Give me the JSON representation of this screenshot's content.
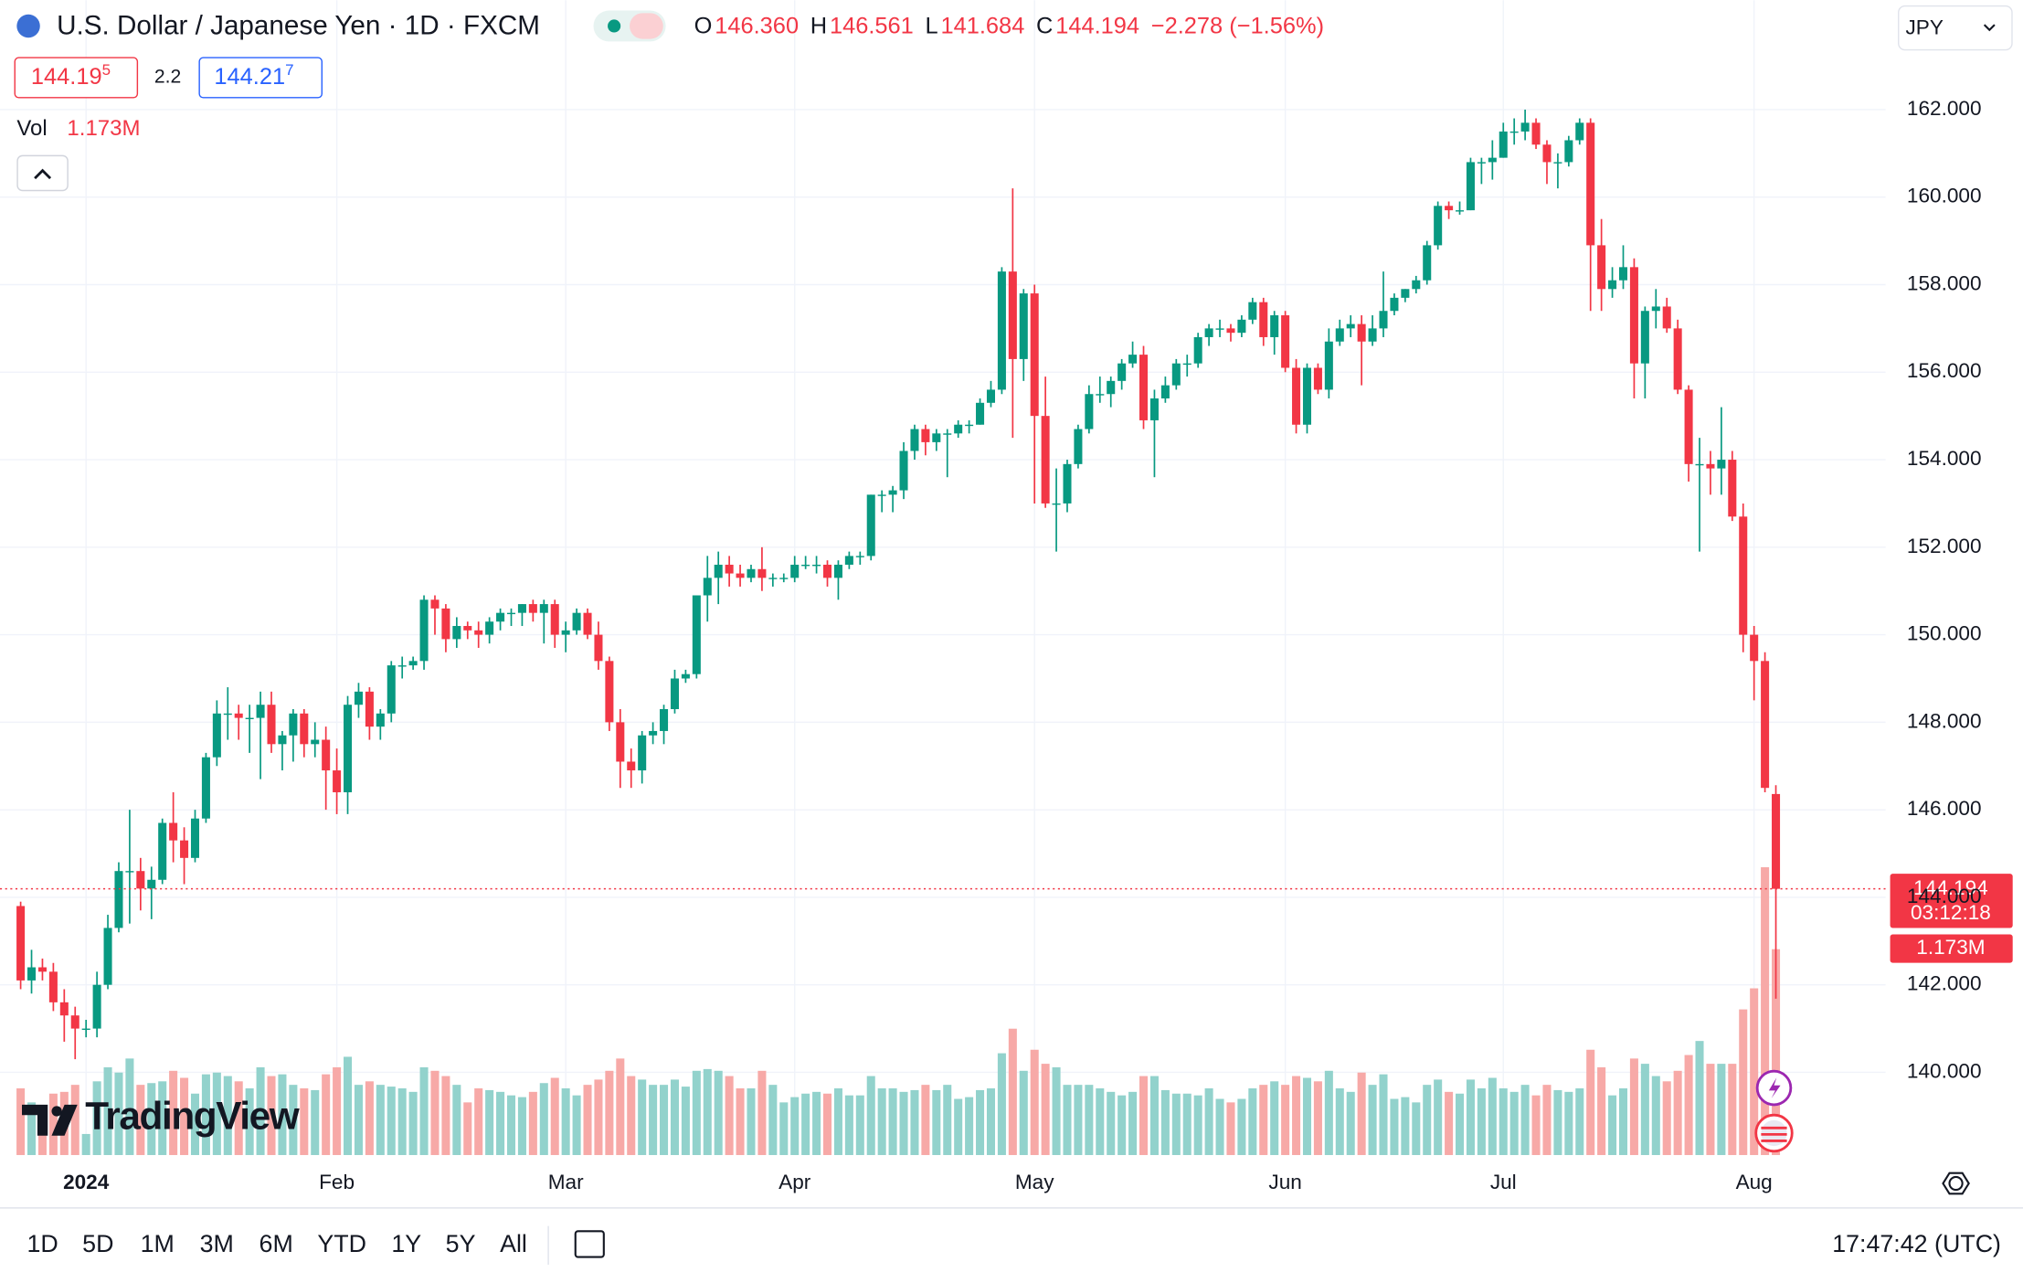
{
  "header": {
    "symbol": "U.S. Dollar / Japanese Yen · 1D · FXCM",
    "ohlc": [
      {
        "key": "O",
        "value": "146.360"
      },
      {
        "key": "H",
        "value": "146.561"
      },
      {
        "key": "L",
        "value": "141.684"
      },
      {
        "key": "C",
        "value": "144.194"
      }
    ],
    "change": "−2.278 (−1.56%)",
    "bid": {
      "main": "144.19",
      "pip": "5"
    },
    "spread": "2.2",
    "ask": {
      "main": "144.21",
      "pip": "7"
    },
    "volume_key": "Vol",
    "volume_value": "1.173M",
    "currency": "JPY"
  },
  "chart_data": {
    "type": "candlestick",
    "up_color": "#089981",
    "down_color": "#f23645",
    "volume_up_color": "#92d2cc",
    "volume_down_color": "#f7a9a7",
    "grid": true,
    "ylim": [
      138.11,
      164.5
    ],
    "yticks": [
      {
        "value": 140,
        "label": "140.000"
      },
      {
        "value": 142,
        "label": "142.000"
      },
      {
        "value": 144,
        "label": "144.000"
      },
      {
        "value": 146,
        "label": "146.000"
      },
      {
        "value": 148,
        "label": "148.000"
      },
      {
        "value": 150,
        "label": "150.000"
      },
      {
        "value": 152,
        "label": "152.000"
      },
      {
        "value": 154,
        "label": "154.000"
      },
      {
        "value": 156,
        "label": "156.000"
      },
      {
        "value": 158,
        "label": "158.000"
      },
      {
        "value": 160,
        "label": "160.000"
      },
      {
        "value": 162,
        "label": "162.000"
      }
    ],
    "categories": [
      null,
      null,
      null,
      null,
      null,
      null,
      "2024",
      null,
      null,
      null,
      null,
      null,
      null,
      null,
      null,
      null,
      null,
      null,
      null,
      null,
      null,
      null,
      null,
      null,
      null,
      null,
      null,
      null,
      null,
      "Feb",
      null,
      null,
      null,
      null,
      null,
      null,
      null,
      null,
      null,
      null,
      null,
      null,
      null,
      null,
      null,
      null,
      null,
      null,
      null,
      null,
      "Mar",
      null,
      null,
      null,
      null,
      null,
      null,
      null,
      null,
      null,
      null,
      null,
      null,
      null,
      null,
      null,
      null,
      null,
      null,
      null,
      null,
      "Apr",
      null,
      null,
      null,
      null,
      null,
      null,
      null,
      null,
      null,
      null,
      null,
      null,
      null,
      null,
      null,
      null,
      null,
      null,
      null,
      null,
      null,
      "May",
      null,
      null,
      null,
      null,
      null,
      null,
      null,
      null,
      null,
      null,
      null,
      null,
      null,
      null,
      null,
      null,
      null,
      null,
      null,
      null,
      null,
      null,
      "Jun",
      null,
      null,
      null,
      null,
      null,
      null,
      null,
      null,
      null,
      null,
      null,
      null,
      null,
      null,
      null,
      null,
      null,
      null,
      null,
      "Jul",
      null,
      null,
      null,
      null,
      null,
      null,
      null,
      null,
      null,
      null,
      null,
      null,
      null,
      null,
      null,
      null,
      null,
      null,
      null,
      null,
      null,
      null,
      "Aug",
      null,
      null
    ],
    "open": [
      143.8,
      142.1,
      142.4,
      142.3,
      141.6,
      141.3,
      141.0,
      141.0,
      142.0,
      143.3,
      144.6,
      144.6,
      144.2,
      144.4,
      145.7,
      145.3,
      144.9,
      145.8,
      147.2,
      148.2,
      148.2,
      148.1,
      148.1,
      148.4,
      147.5,
      147.7,
      148.2,
      147.5,
      147.6,
      146.9,
      146.4,
      148.4,
      148.7,
      147.9,
      148.2,
      149.3,
      149.3,
      149.4,
      150.8,
      150.6,
      149.9,
      150.2,
      150.1,
      150.0,
      150.3,
      150.5,
      150.5,
      150.7,
      150.5,
      150.7,
      150.0,
      150.1,
      150.5,
      150.0,
      149.4,
      148.0,
      147.1,
      146.9,
      147.7,
      147.8,
      148.3,
      149.0,
      149.1,
      150.9,
      151.3,
      151.6,
      151.4,
      151.3,
      151.5,
      151.3,
      151.3,
      151.3,
      151.6,
      151.6,
      151.6,
      151.3,
      151.6,
      151.8,
      151.8,
      153.2,
      153.2,
      153.3,
      154.2,
      154.7,
      154.4,
      154.6,
      154.6,
      154.8,
      154.8,
      155.3,
      155.6,
      158.3,
      156.3,
      157.8,
      155.0,
      153.0,
      153.0,
      153.9,
      154.7,
      155.5,
      155.5,
      155.8,
      156.2,
      156.4,
      154.9,
      155.4,
      155.7,
      156.2,
      156.2,
      156.8,
      157.0,
      157.0,
      156.9,
      157.2,
      157.6,
      156.8,
      157.3,
      156.1,
      154.8,
      156.1,
      155.6,
      156.7,
      157.0,
      157.1,
      156.7,
      157.0,
      157.4,
      157.7,
      157.9,
      158.1,
      158.9,
      159.8,
      159.7,
      159.7,
      160.8,
      160.8,
      160.9,
      161.5,
      161.5,
      161.7,
      161.2,
      160.8,
      160.8,
      161.3,
      161.7,
      158.9,
      157.9,
      158.1,
      158.4,
      156.2,
      157.4,
      157.5,
      157.0,
      155.6,
      153.9,
      153.9,
      153.8,
      154.0,
      152.7,
      150.0,
      149.4,
      146.36
    ],
    "high": [
      143.9,
      142.8,
      142.6,
      142.5,
      141.9,
      141.5,
      141.2,
      142.3,
      143.6,
      144.8,
      146.0,
      144.9,
      144.7,
      145.8,
      146.4,
      145.6,
      146.0,
      147.3,
      148.5,
      148.8,
      148.4,
      148.4,
      148.7,
      148.7,
      147.8,
      148.3,
      148.3,
      148.0,
      147.9,
      147.4,
      148.6,
      148.9,
      148.8,
      148.3,
      149.4,
      149.5,
      149.5,
      150.9,
      150.9,
      150.7,
      150.4,
      150.3,
      150.3,
      150.4,
      150.6,
      150.6,
      150.7,
      150.8,
      150.8,
      150.8,
      150.3,
      150.6,
      150.6,
      150.3,
      149.5,
      148.3,
      147.4,
      147.8,
      148.0,
      148.4,
      149.2,
      149.2,
      150.9,
      151.8,
      151.9,
      151.8,
      151.6,
      151.6,
      152.0,
      151.4,
      151.4,
      151.8,
      151.8,
      151.8,
      151.7,
      151.7,
      151.9,
      151.9,
      153.2,
      153.3,
      153.4,
      154.4,
      154.8,
      154.8,
      154.7,
      154.7,
      154.9,
      154.9,
      155.4,
      155.8,
      158.4,
      160.2,
      157.9,
      158.0,
      155.9,
      153.8,
      154.0,
      154.8,
      155.7,
      155.9,
      155.9,
      156.3,
      156.7,
      156.6,
      155.6,
      155.9,
      156.3,
      156.4,
      156.9,
      157.1,
      157.2,
      157.1,
      157.3,
      157.7,
      157.7,
      157.4,
      157.4,
      156.3,
      156.2,
      156.2,
      157.0,
      157.2,
      157.3,
      157.3,
      157.3,
      158.3,
      157.8,
      157.9,
      158.2,
      159.0,
      159.9,
      159.9,
      159.9,
      160.9,
      160.9,
      161.3,
      161.7,
      161.8,
      162.0,
      161.8,
      161.3,
      161.0,
      161.4,
      161.8,
      161.8,
      159.5,
      158.4,
      158.9,
      158.6,
      157.5,
      157.9,
      157.7,
      157.2,
      155.7,
      154.5,
      154.2,
      155.2,
      154.2,
      153.0,
      150.2,
      149.6,
      146.561
    ],
    "low": [
      141.9,
      141.8,
      142.1,
      141.4,
      140.7,
      140.3,
      140.8,
      140.8,
      141.9,
      143.2,
      143.4,
      143.7,
      143.5,
      144.3,
      144.8,
      144.3,
      144.8,
      145.7,
      147.0,
      147.6,
      147.6,
      147.3,
      146.7,
      147.3,
      146.9,
      147.1,
      147.2,
      147.2,
      146.0,
      145.9,
      145.9,
      148.1,
      147.6,
      147.6,
      148.0,
      149.0,
      149.2,
      149.2,
      150.0,
      149.6,
      149.7,
      149.9,
      149.7,
      149.8,
      150.1,
      150.2,
      150.2,
      150.3,
      149.8,
      149.7,
      149.6,
      150.0,
      149.9,
      149.2,
      147.8,
      146.5,
      146.5,
      146.6,
      147.5,
      147.5,
      148.2,
      148.9,
      149.0,
      150.3,
      150.7,
      151.1,
      151.1,
      151.2,
      151.0,
      151.1,
      151.2,
      151.2,
      151.5,
      151.4,
      151.1,
      150.8,
      151.5,
      151.6,
      151.7,
      152.8,
      152.8,
      153.1,
      154.0,
      154.1,
      154.2,
      153.6,
      154.5,
      154.6,
      154.8,
      155.2,
      155.5,
      154.5,
      155.8,
      153.0,
      152.9,
      151.9,
      152.8,
      153.8,
      154.6,
      155.3,
      155.2,
      155.6,
      156.1,
      154.7,
      153.6,
      155.3,
      155.6,
      155.9,
      156.1,
      156.6,
      156.8,
      156.7,
      156.8,
      157.1,
      156.6,
      156.4,
      156.0,
      154.6,
      154.6,
      155.5,
      155.4,
      156.6,
      156.8,
      155.7,
      156.6,
      156.8,
      157.3,
      157.6,
      157.8,
      158.0,
      158.8,
      159.5,
      159.6,
      159.7,
      160.3,
      160.4,
      160.9,
      161.2,
      161.3,
      161.1,
      160.3,
      160.2,
      160.7,
      161.2,
      157.4,
      157.4,
      157.7,
      157.9,
      155.4,
      155.4,
      157.0,
      156.9,
      155.5,
      153.5,
      151.9,
      153.2,
      153.2,
      152.6,
      149.6,
      148.5,
      146.4,
      141.684
    ],
    "close": [
      142.1,
      142.4,
      142.3,
      141.6,
      141.3,
      141.0,
      141.0,
      142.0,
      143.3,
      144.6,
      144.6,
      144.2,
      144.4,
      145.7,
      145.3,
      144.9,
      145.8,
      147.2,
      148.2,
      148.2,
      148.1,
      148.1,
      148.4,
      147.5,
      147.7,
      148.2,
      147.5,
      147.6,
      146.9,
      146.4,
      148.4,
      148.7,
      147.9,
      148.2,
      149.3,
      149.3,
      149.4,
      150.8,
      150.6,
      149.9,
      150.2,
      150.1,
      150.0,
      150.3,
      150.5,
      150.5,
      150.7,
      150.5,
      150.7,
      150.0,
      150.1,
      150.5,
      150.0,
      149.4,
      148.0,
      147.1,
      146.9,
      147.7,
      147.8,
      148.3,
      149.0,
      149.1,
      150.9,
      151.3,
      151.6,
      151.4,
      151.3,
      151.5,
      151.3,
      151.3,
      151.3,
      151.6,
      151.6,
      151.6,
      151.3,
      151.6,
      151.8,
      151.8,
      153.2,
      153.2,
      153.3,
      154.2,
      154.7,
      154.4,
      154.6,
      154.6,
      154.8,
      154.8,
      155.3,
      155.6,
      158.3,
      156.3,
      157.8,
      155.0,
      153.0,
      153.0,
      153.9,
      154.7,
      155.5,
      155.5,
      155.8,
      156.2,
      156.4,
      154.9,
      155.4,
      155.7,
      156.2,
      156.2,
      156.8,
      157.0,
      157.0,
      156.9,
      157.2,
      157.6,
      156.8,
      157.3,
      156.1,
      154.8,
      156.1,
      155.6,
      156.7,
      157.0,
      157.1,
      156.7,
      157.0,
      157.4,
      157.7,
      157.9,
      158.1,
      158.9,
      159.8,
      159.7,
      159.7,
      160.8,
      160.8,
      160.9,
      161.5,
      161.5,
      161.7,
      161.2,
      160.8,
      160.8,
      161.3,
      161.7,
      158.9,
      157.9,
      158.1,
      158.4,
      156.2,
      157.4,
      157.5,
      157.0,
      155.6,
      153.9,
      153.9,
      153.8,
      154.0,
      152.7,
      150.0,
      149.4,
      146.5,
      144.194
    ],
    "volume": {
      "name": "Vol",
      "values": [
        0.38,
        0.3,
        0.25,
        0.35,
        0.36,
        0.4,
        0.12,
        0.42,
        0.5,
        0.47,
        0.55,
        0.4,
        0.41,
        0.42,
        0.48,
        0.44,
        0.35,
        0.46,
        0.47,
        0.45,
        0.42,
        0.38,
        0.5,
        0.45,
        0.46,
        0.4,
        0.38,
        0.37,
        0.46,
        0.5,
        0.56,
        0.4,
        0.42,
        0.4,
        0.39,
        0.38,
        0.36,
        0.5,
        0.48,
        0.45,
        0.4,
        0.3,
        0.38,
        0.37,
        0.36,
        0.34,
        0.33,
        0.36,
        0.41,
        0.44,
        0.38,
        0.34,
        0.4,
        0.43,
        0.48,
        0.55,
        0.45,
        0.43,
        0.4,
        0.4,
        0.43,
        0.39,
        0.48,
        0.49,
        0.48,
        0.45,
        0.38,
        0.38,
        0.48,
        0.4,
        0.3,
        0.33,
        0.35,
        0.36,
        0.35,
        0.38,
        0.34,
        0.34,
        0.45,
        0.38,
        0.38,
        0.36,
        0.37,
        0.4,
        0.37,
        0.4,
        0.32,
        0.33,
        0.37,
        0.38,
        0.58,
        0.72,
        0.48,
        0.6,
        0.52,
        0.5,
        0.4,
        0.4,
        0.4,
        0.38,
        0.36,
        0.34,
        0.36,
        0.45,
        0.45,
        0.37,
        0.35,
        0.35,
        0.34,
        0.38,
        0.32,
        0.3,
        0.32,
        0.38,
        0.4,
        0.42,
        0.4,
        0.45,
        0.44,
        0.42,
        0.48,
        0.38,
        0.36,
        0.47,
        0.4,
        0.46,
        0.32,
        0.33,
        0.3,
        0.4,
        0.43,
        0.36,
        0.35,
        0.43,
        0.38,
        0.44,
        0.38,
        0.36,
        0.4,
        0.34,
        0.4,
        0.37,
        0.36,
        0.38,
        0.6,
        0.5,
        0.34,
        0.38,
        0.55,
        0.52,
        0.45,
        0.42,
        0.48,
        0.57,
        0.65,
        0.52,
        0.52,
        0.52,
        0.83,
        0.95,
        1.64,
        1.173
      ]
    }
  },
  "price_tag": {
    "price": "144.194",
    "countdown": "03:12:18",
    "volume": "1.173M"
  },
  "logo": "TradingView",
  "toolbar": {
    "ranges": [
      "1D",
      "5D",
      "1M",
      "3M",
      "6M",
      "YTD",
      "1Y",
      "5Y",
      "All"
    ],
    "clock": "17:47:42 (UTC)"
  }
}
